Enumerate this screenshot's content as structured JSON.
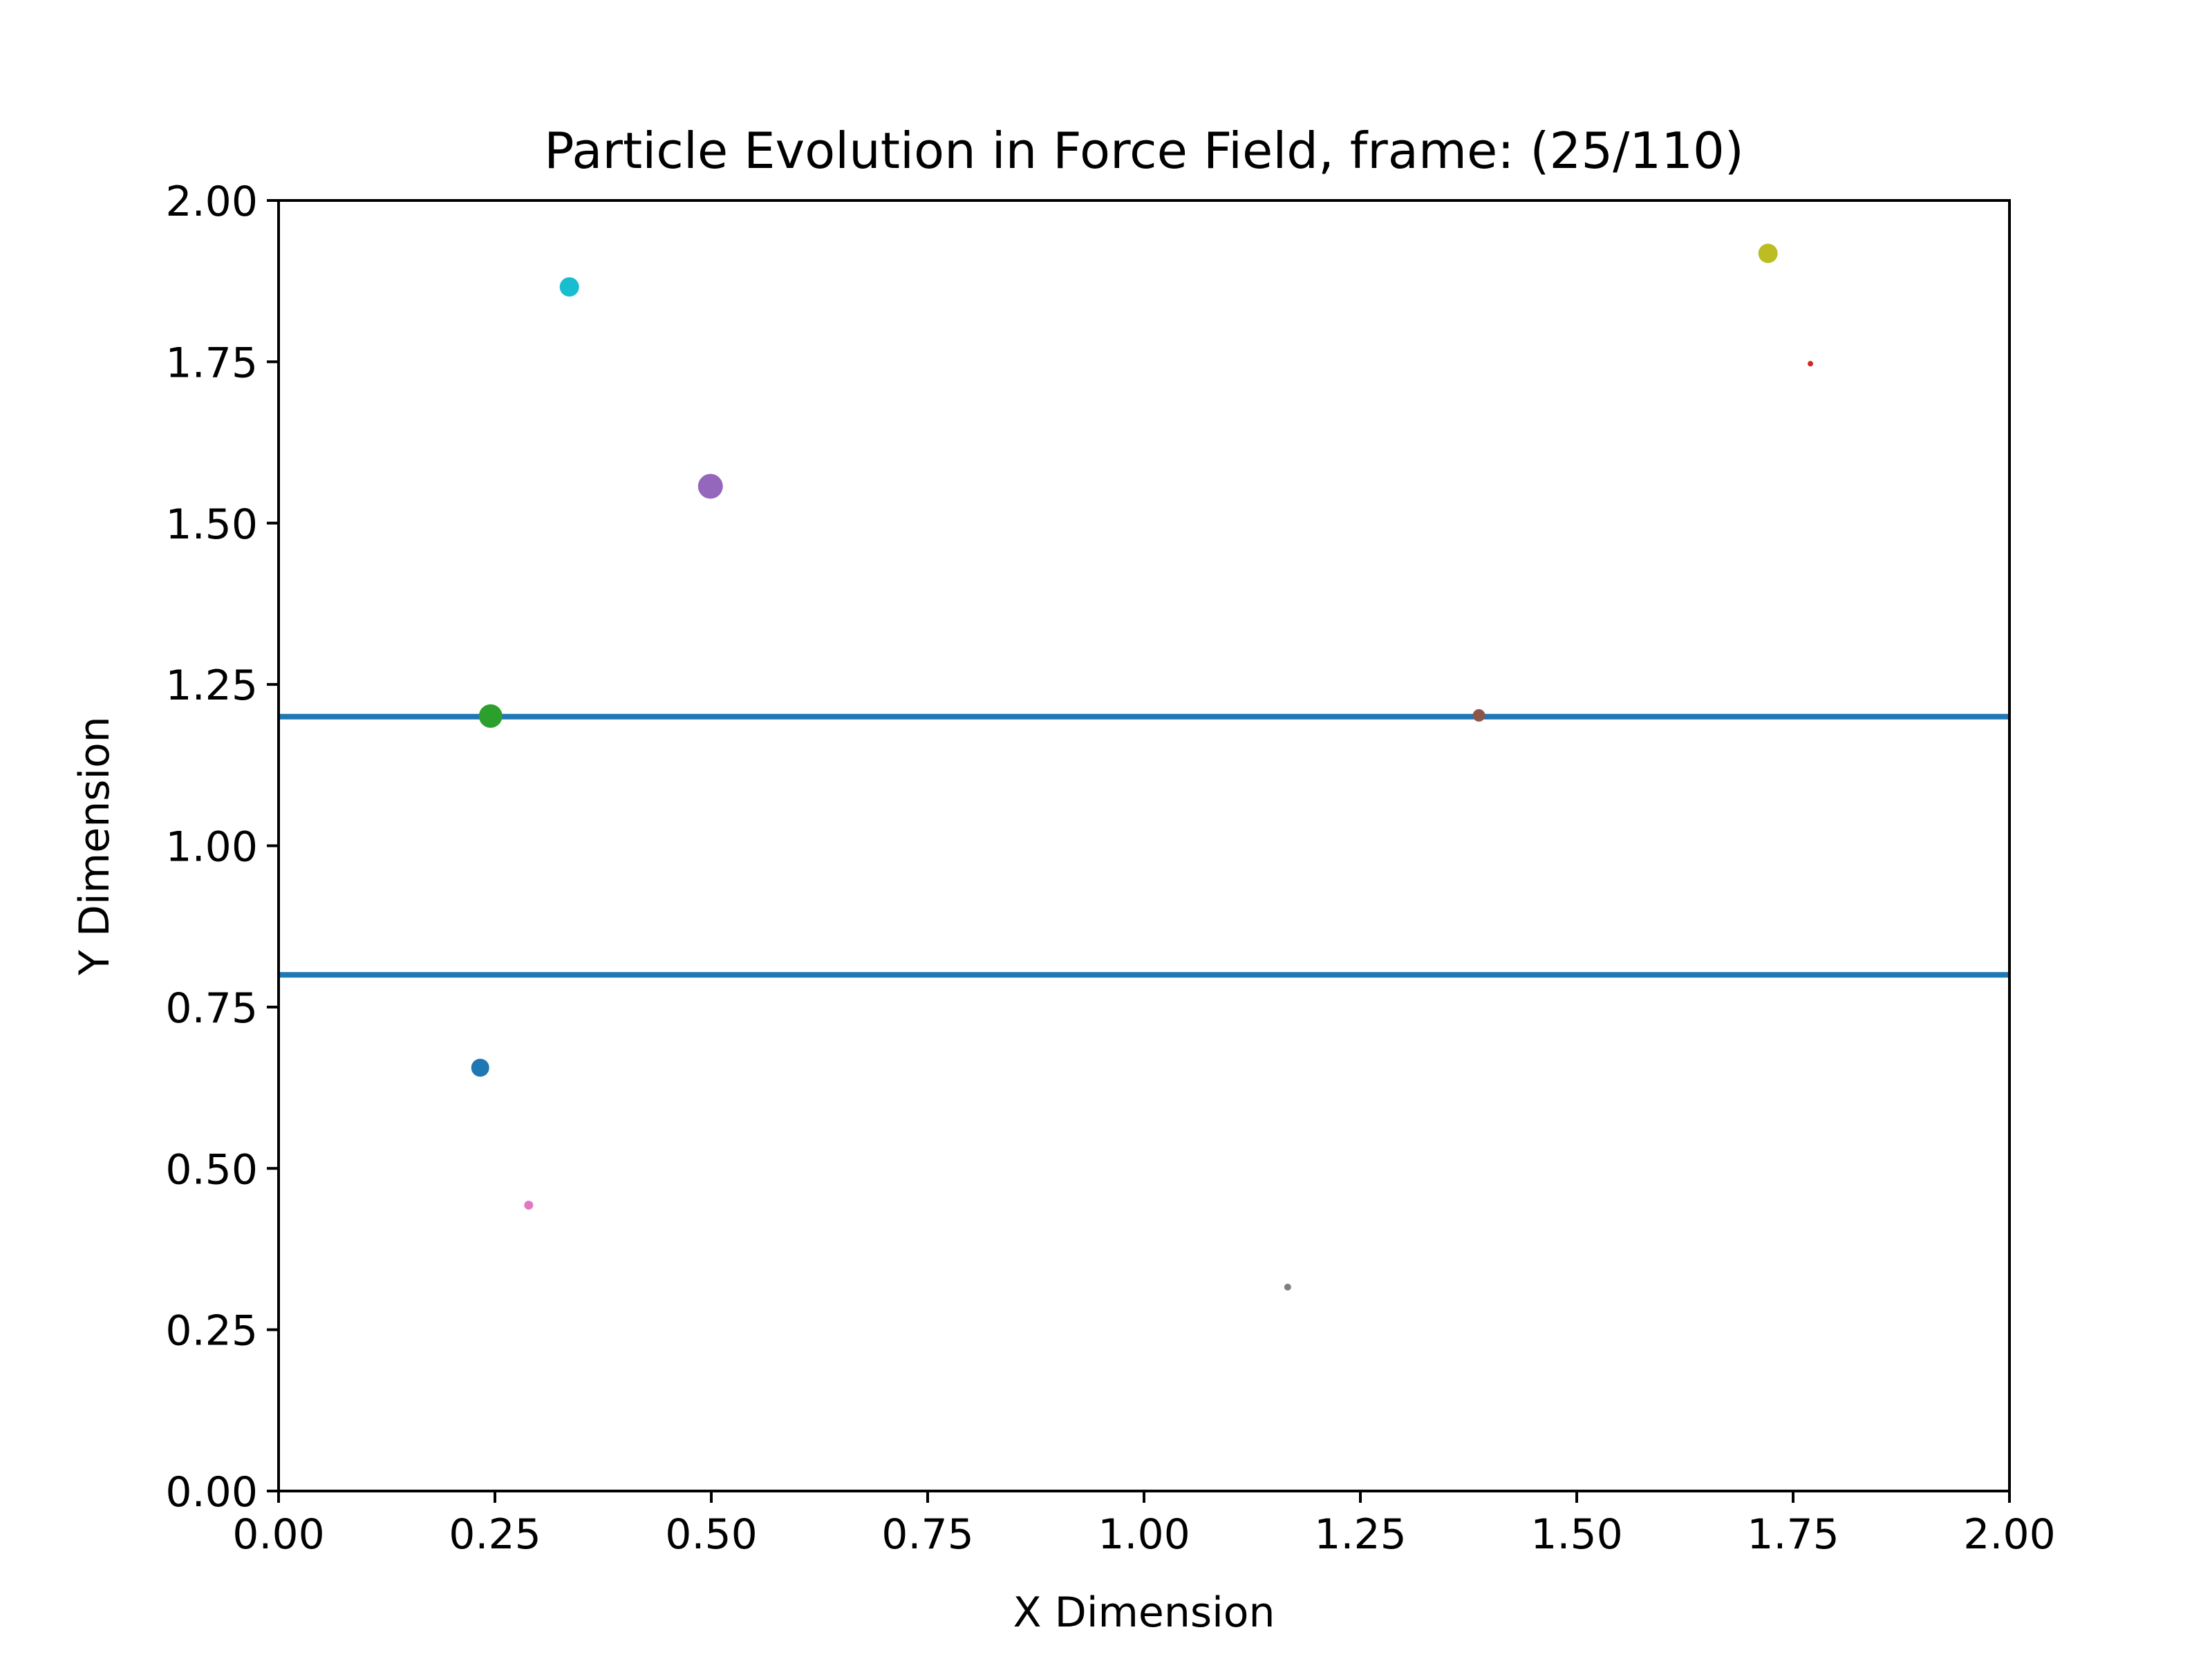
{
  "chart_data": {
    "type": "scatter",
    "title": "Particle Evolution in Force Field, frame: (25/110)",
    "xlabel": "X Dimension",
    "ylabel": "Y Dimension",
    "xlim": [
      0.0,
      2.0
    ],
    "ylim": [
      0.0,
      2.0
    ],
    "grid": false,
    "legend": "none",
    "x_ticks": [
      "0.00",
      "0.25",
      "0.50",
      "0.75",
      "1.00",
      "1.25",
      "1.50",
      "1.75",
      "2.00"
    ],
    "y_ticks": [
      "0.00",
      "0.25",
      "0.50",
      "0.75",
      "1.00",
      "1.25",
      "1.50",
      "1.75",
      "2.00"
    ],
    "hlines": [
      {
        "y": 1.2,
        "color": "#1f77b4"
      },
      {
        "y": 0.8,
        "color": "#1f77b4"
      }
    ],
    "points": [
      {
        "x": 0.233,
        "y": 0.656,
        "color": "#1f77b4",
        "size": 2.6
      },
      {
        "x": 1.77,
        "y": 1.747,
        "color": "#d62728",
        "size": 0.8
      },
      {
        "x": 0.245,
        "y": 1.201,
        "color": "#2ca02c",
        "size": 3.4
      },
      {
        "x": 0.499,
        "y": 1.557,
        "color": "#9467bd",
        "size": 3.6
      },
      {
        "x": 1.387,
        "y": 1.202,
        "color": "#8c564b",
        "size": 1.8
      },
      {
        "x": 0.289,
        "y": 0.443,
        "color": "#e377c2",
        "size": 1.3
      },
      {
        "x": 1.166,
        "y": 0.316,
        "color": "#7f7f7f",
        "size": 1.0
      },
      {
        "x": 1.721,
        "y": 1.918,
        "color": "#bcbd22",
        "size": 2.8
      },
      {
        "x": 0.336,
        "y": 1.866,
        "color": "#17becf",
        "size": 2.8
      }
    ]
  }
}
